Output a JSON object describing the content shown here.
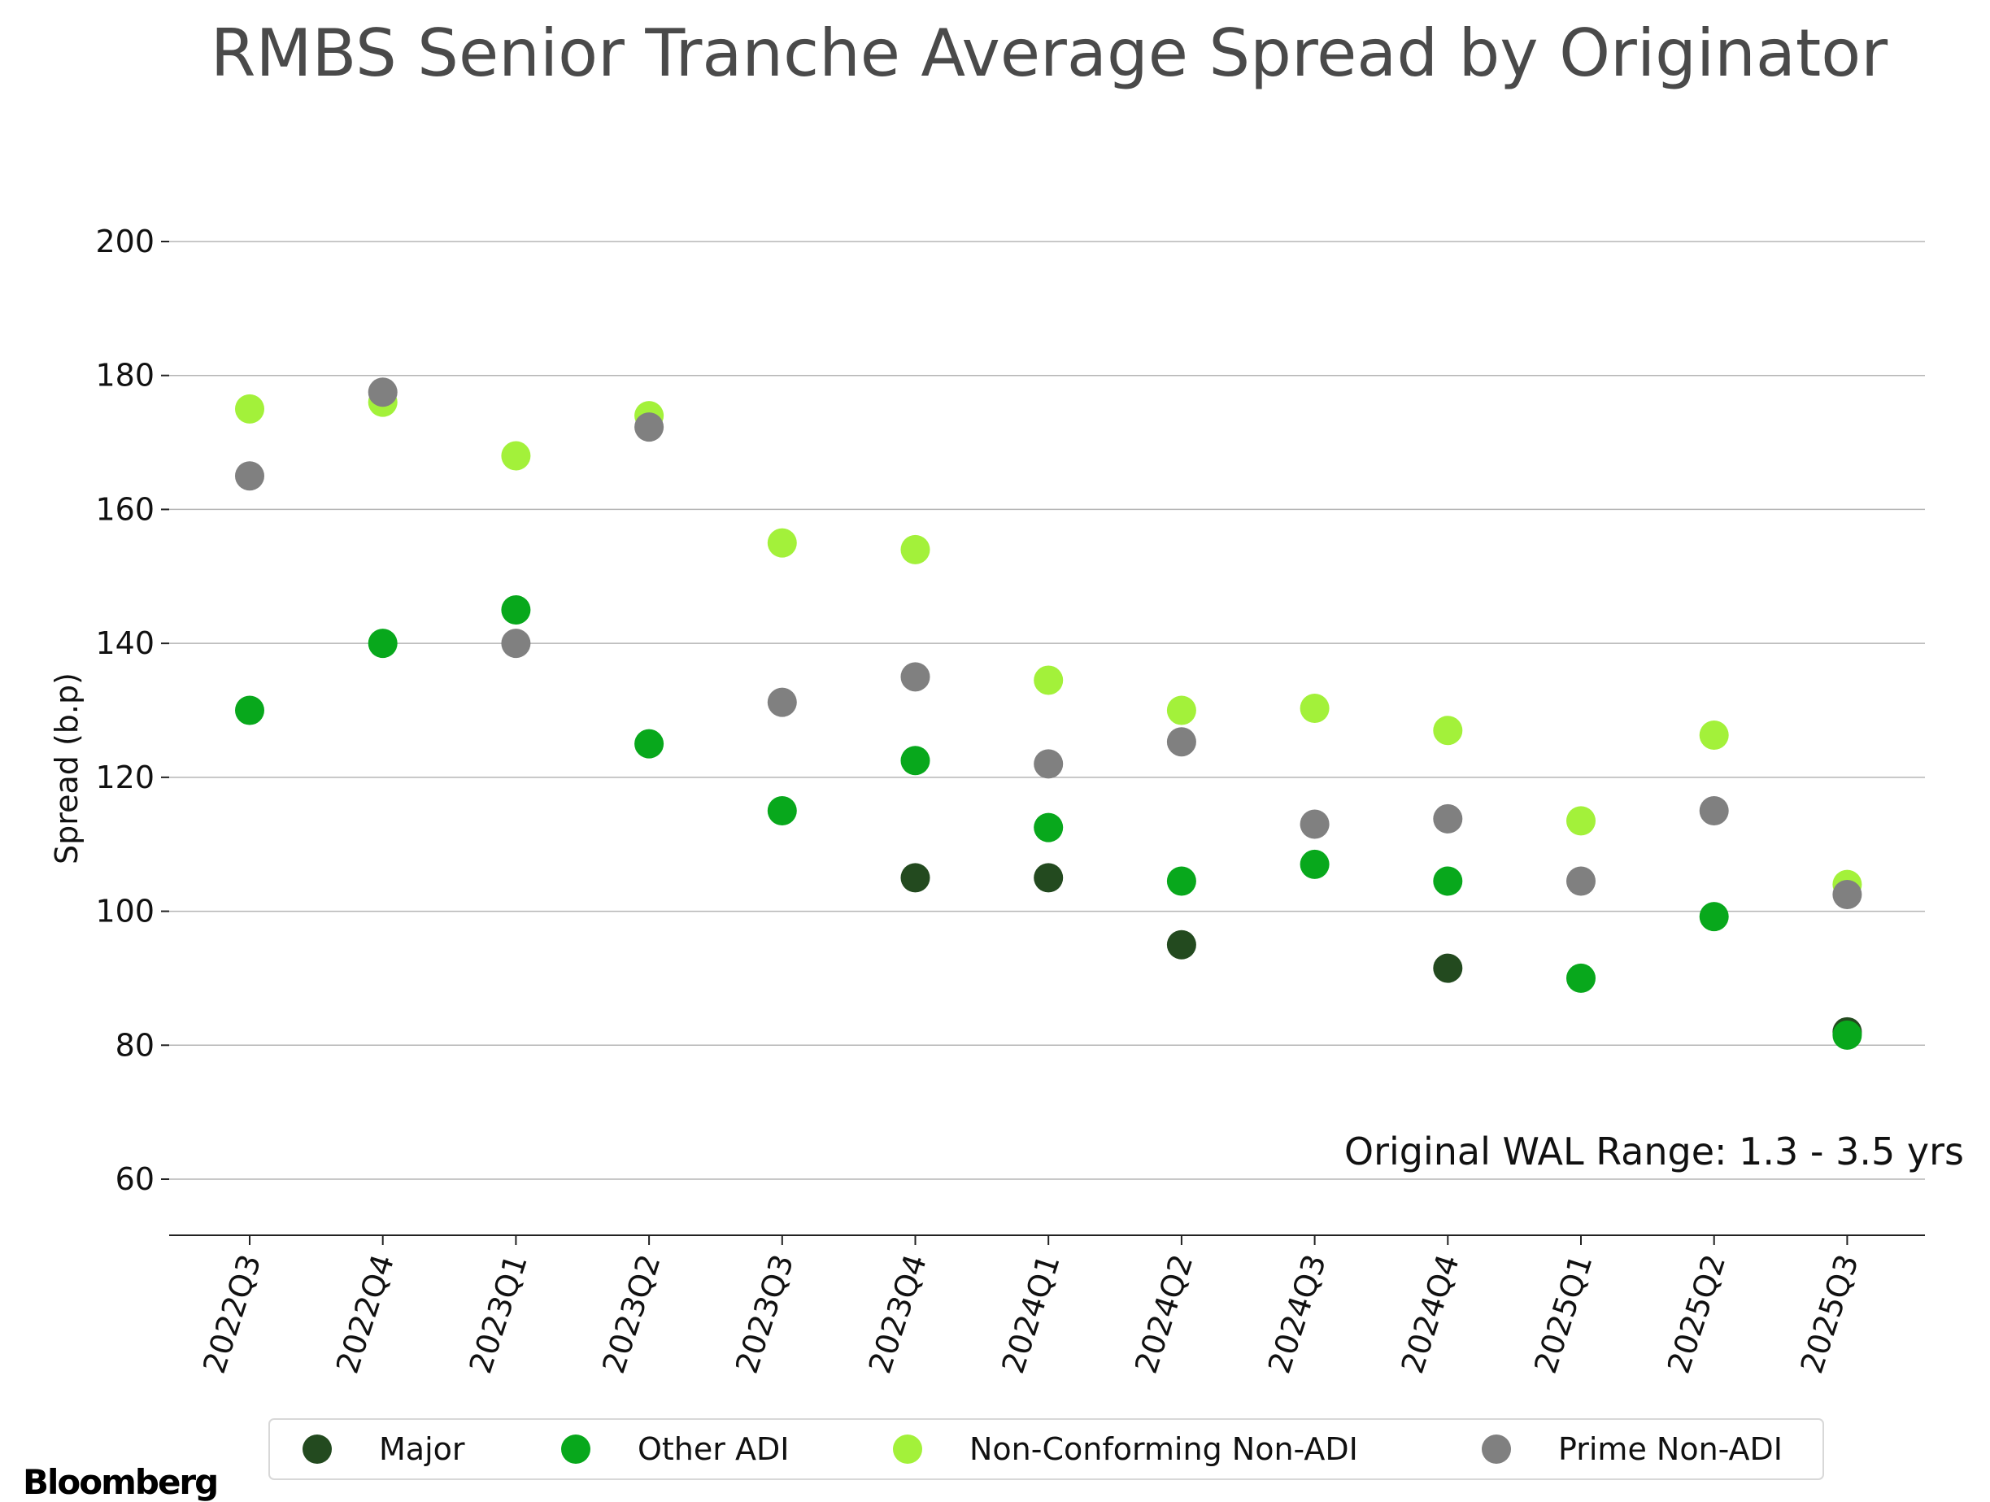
{
  "chart_data": {
    "type": "scatter",
    "title": "RMBS Senior Tranche Average Spread by Originator",
    "ylabel": "Spread (b.p)",
    "xlabel": "",
    "ylim": [
      52,
      208
    ],
    "yticks": [
      60,
      80,
      100,
      120,
      140,
      160,
      180,
      200
    ],
    "grid": "horizontal",
    "legend_position": "bottom",
    "annotation": "Original WAL Range: 1.3 - 3.5 yrs",
    "categories": [
      "2022Q3",
      "2022Q4",
      "2023Q1",
      "2023Q2",
      "2023Q3",
      "2023Q4",
      "2024Q1",
      "2024Q2",
      "2024Q3",
      "2024Q4",
      "2025Q1",
      "2025Q2",
      "2025Q3"
    ],
    "series": [
      {
        "name": "Major",
        "color": "#234a1f",
        "values": [
          null,
          null,
          null,
          null,
          null,
          105,
          105,
          95,
          null,
          91.5,
          null,
          null,
          82
        ]
      },
      {
        "name": "Other ADI",
        "color": "#08a81c",
        "values": [
          130,
          140,
          145,
          125,
          115,
          122.5,
          112.5,
          104.5,
          107,
          104.5,
          90,
          99.2,
          81.5
        ]
      },
      {
        "name": "Non-Conforming Non-ADI",
        "color": "#a3f13a",
        "values": [
          175,
          176,
          168,
          174,
          155,
          154,
          134.5,
          130,
          130.3,
          127,
          113.5,
          126.3,
          104
        ]
      },
      {
        "name": "Prime Non-ADI",
        "color": "#808080",
        "values": [
          165,
          177.5,
          140,
          172.3,
          131.2,
          135,
          122,
          125.3,
          113,
          113.8,
          104.5,
          115,
          102.5
        ]
      }
    ]
  },
  "branding": {
    "logo_text": "Bloomberg"
  }
}
